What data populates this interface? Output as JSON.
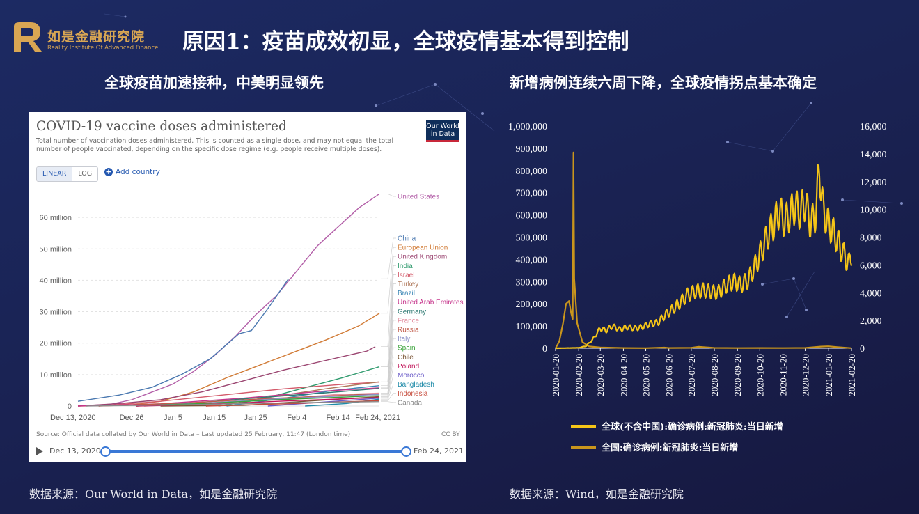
{
  "header": {
    "brand_cn": "如是金融研究院",
    "brand_en": "Reality Institute Of Advanced Finance",
    "title": "原因1：疫苗成效初显，全球疫情基本得到控制"
  },
  "left": {
    "subtitle": "全球疫苗加速接种，中美明显领先",
    "source": "数据来源：Our World in Data，如是金融研究院",
    "panel": {
      "title": "COVID-19 vaccine doses administered",
      "description": "Total number of vaccination doses administered. This is counted as a single dose, and may not equal the total number of people vaccinated, depending on the specific dose regime (e.g. people receive multiple doses).",
      "logo_text": [
        "Our World",
        "in Data"
      ],
      "scale_linear": "LINEAR",
      "scale_log": "LOG",
      "add_country": "Add country",
      "source_note": "Source: Official data collated by Our World in Data – Last updated 25 February, 11:47 (London time)",
      "license": "CC BY",
      "timeline_start": "Dec 13, 2020",
      "timeline_end": "Feb 24, 2021"
    }
  },
  "right": {
    "subtitle": "新增病例连续六周下降，全球疫情拐点基本确定",
    "source": "数据来源：Wind，如是金融研究院",
    "legend": [
      {
        "label": "全球(不含中国):确诊病例:新冠肺炎:当日新增",
        "color": "#f5c518"
      },
      {
        "label": "全国:确诊病例:新冠肺炎:当日新增",
        "color": "#c9951c"
      }
    ]
  },
  "chart_data": [
    {
      "type": "line",
      "title": "COVID-19 vaccine doses administered",
      "x_ticks": [
        "Dec 13, 2020",
        "Dec 26",
        "Jan 5",
        "Jan 15",
        "Jan 25",
        "Feb 4",
        "Feb 14",
        "Feb 24, 2021"
      ],
      "y_ticks": [
        "0",
        "10 million",
        "20 million",
        "30 million",
        "40 million",
        "50 million",
        "60 million"
      ],
      "ylim": [
        0,
        68000000
      ],
      "xlim_days": [
        0,
        73
      ],
      "series": [
        {
          "name": "United States",
          "color": "#b35fa8",
          "x": [
            0,
            8,
            13,
            18,
            23,
            28,
            33,
            38,
            43,
            48,
            53,
            58,
            63,
            68,
            73
          ],
          "values": [
            0,
            600000,
            2000000,
            4500000,
            7000000,
            11000000,
            16000000,
            22000000,
            29000000,
            35000000,
            43000000,
            51000000,
            57000000,
            63000000,
            67500000
          ]
        },
        {
          "name": "China",
          "color": "#4a78b0",
          "x": [
            0,
            10,
            18,
            25,
            32,
            39,
            42,
            46,
            51
          ],
          "values": [
            1500000,
            3500000,
            6000000,
            10000000,
            15000000,
            23000000,
            24000000,
            31000000,
            40500000
          ]
        },
        {
          "name": "European Union",
          "color": "#d17b36",
          "x": [
            0,
            12,
            20,
            28,
            36,
            44,
            52,
            60,
            68,
            73
          ],
          "values": [
            0,
            200000,
            1500000,
            4500000,
            9000000,
            13000000,
            17000000,
            21000000,
            25500000,
            29500000
          ]
        },
        {
          "name": "United Kingdom",
          "color": "#9a4470",
          "x": [
            0,
            10,
            20,
            30,
            40,
            50,
            60,
            70,
            72
          ],
          "values": [
            0,
            800000,
            2000000,
            4500000,
            8000000,
            11500000,
            14500000,
            17500000,
            18900000
          ]
        },
        {
          "name": "India",
          "color": "#2e9a6d",
          "x": [
            34,
            44,
            54,
            64,
            73
          ],
          "values": [
            0,
            2000000,
            5500000,
            9000000,
            12500000
          ]
        },
        {
          "name": "Israel",
          "color": "#d35a6a",
          "x": [
            5,
            20,
            35,
            50,
            65,
            73
          ],
          "values": [
            0,
            1500000,
            3500000,
            5500000,
            7000000,
            7600000
          ]
        },
        {
          "name": "Turkey",
          "color": "#b07a5c",
          "x": [
            31,
            45,
            60,
            73
          ],
          "values": [
            0,
            2500000,
            5500000,
            7700000
          ]
        },
        {
          "name": "Brazil",
          "color": "#3a86b5",
          "x": [
            36,
            50,
            62,
            73
          ],
          "values": [
            0,
            2500000,
            5000000,
            6500000
          ]
        },
        {
          "name": "United Arab Emirates",
          "color": "#c6368c",
          "x": [
            0,
            20,
            40,
            60,
            73
          ],
          "values": [
            0,
            700000,
            2500000,
            4800000,
            5800000
          ]
        },
        {
          "name": "Germany",
          "color": "#2f7a73",
          "x": [
            14,
            30,
            45,
            60,
            73
          ],
          "values": [
            0,
            1200000,
            2800000,
            4200000,
            5600000
          ]
        },
        {
          "name": "France",
          "color": "#e38fa0",
          "x": [
            16,
            32,
            48,
            62,
            73
          ],
          "values": [
            0,
            700000,
            2200000,
            3600000,
            4100000
          ]
        },
        {
          "name": "Russia",
          "color": "#c15b4a",
          "x": [
            5,
            25,
            45,
            73
          ],
          "values": [
            0,
            900000,
            2300000,
            3900000
          ]
        },
        {
          "name": "Italy",
          "color": "#8a8fc8",
          "x": [
            14,
            30,
            50,
            73
          ],
          "values": [
            0,
            900000,
            2400000,
            3700000
          ]
        },
        {
          "name": "Spain",
          "color": "#3aa33a",
          "x": [
            14,
            30,
            50,
            73
          ],
          "values": [
            0,
            800000,
            2100000,
            3300000
          ]
        },
        {
          "name": "Chile",
          "color": "#7a5535",
          "x": [
            20,
            40,
            55,
            73
          ],
          "values": [
            0,
            200000,
            1500000,
            3000000
          ]
        },
        {
          "name": "Poland",
          "color": "#c2185b",
          "x": [
            14,
            30,
            50,
            73
          ],
          "values": [
            0,
            500000,
            1600000,
            2700000
          ]
        },
        {
          "name": "Morocco",
          "color": "#6a5ac8",
          "x": [
            46,
            60,
            73
          ],
          "values": [
            0,
            1300000,
            2500000
          ]
        },
        {
          "name": "Bangladesh",
          "color": "#1e8aa8",
          "x": [
            55,
            65,
            73
          ],
          "values": [
            0,
            800000,
            2200000
          ]
        },
        {
          "name": "Indonesia",
          "color": "#c64a3a",
          "x": [
            31,
            50,
            73
          ],
          "values": [
            0,
            700000,
            1700000
          ]
        },
        {
          "name": "Canada",
          "color": "#8a8a8a",
          "x": [
            2,
            25,
            50,
            73
          ],
          "values": [
            0,
            400000,
            1000000,
            1400000
          ]
        }
      ]
    },
    {
      "type": "line",
      "x_ticks": [
        "2020-01-20",
        "2020-02-20",
        "2020-03-20",
        "2020-04-20",
        "2020-05-20",
        "2020-06-20",
        "2020-07-20",
        "2020-08-20",
        "2020-09-20",
        "2020-10-20",
        "2020-11-20",
        "2020-12-20",
        "2021-01-20",
        "2021-02-20"
      ],
      "y_left_ticks": [
        "0",
        "100,000",
        "200,000",
        "300,000",
        "400,000",
        "500,000",
        "600,000",
        "700,000",
        "800,000",
        "900,000",
        "1,000,000"
      ],
      "y_right_ticks": [
        "0",
        "2,000",
        "4,000",
        "6,000",
        "8,000",
        "10,000",
        "12,000",
        "14,000",
        "16,000"
      ],
      "ylim_left": [
        0,
        1000000
      ],
      "ylim_right": [
        0,
        16000
      ],
      "series": [
        {
          "name": "全球(不含中国):确诊病例:新冠肺炎:当日新增",
          "axis": "left",
          "color": "#f5c518",
          "x": [
            "2020-01-20",
            "2020-02-20",
            "2020-03-01",
            "2020-03-10",
            "2020-03-20",
            "2020-03-28",
            "2020-04-05",
            "2020-04-15",
            "2020-04-25",
            "2020-05-05",
            "2020-05-15",
            "2020-05-25",
            "2020-06-05",
            "2020-06-15",
            "2020-06-25",
            "2020-07-05",
            "2020-07-15",
            "2020-07-25",
            "2020-08-05",
            "2020-08-15",
            "2020-08-25",
            "2020-09-05",
            "2020-09-15",
            "2020-09-25",
            "2020-10-05",
            "2020-10-15",
            "2020-10-25",
            "2020-11-01",
            "2020-11-08",
            "2020-11-15",
            "2020-11-22",
            "2020-11-29",
            "2020-12-06",
            "2020-12-13",
            "2020-12-20",
            "2020-12-27",
            "2021-01-03",
            "2021-01-08",
            "2021-01-13",
            "2021-01-20",
            "2021-01-27",
            "2021-02-03",
            "2021-02-10",
            "2021-02-17",
            "2021-02-21"
          ],
          "values": [
            0,
            2000,
            10000,
            40000,
            90000,
            80000,
            100000,
            85000,
            95000,
            90000,
            95000,
            110000,
            115000,
            150000,
            175000,
            205000,
            240000,
            255000,
            260000,
            255000,
            250000,
            285000,
            300000,
            285000,
            310000,
            380000,
            460000,
            520000,
            560000,
            620000,
            570000,
            600000,
            640000,
            610000,
            660000,
            560000,
            600000,
            820000,
            620000,
            560000,
            520000,
            470000,
            420000,
            380000,
            440000
          ]
        },
        {
          "name": "全国:确诊病例:新冠肺炎:当日新增",
          "axis": "right",
          "color": "#c9951c",
          "x": [
            "2020-01-20",
            "2020-01-25",
            "2020-01-30",
            "2020-02-03",
            "2020-02-07",
            "2020-02-10",
            "2020-02-12",
            "2020-02-13",
            "2020-02-14",
            "2020-02-18",
            "2020-02-25",
            "2020-03-05",
            "2020-03-20",
            "2020-04-20",
            "2020-05-20",
            "2020-06-14",
            "2020-06-20",
            "2020-07-20",
            "2020-07-30",
            "2020-08-20",
            "2020-09-20",
            "2020-10-20",
            "2020-11-20",
            "2020-12-20",
            "2021-01-10",
            "2021-01-20",
            "2021-02-01",
            "2021-02-20"
          ],
          "values": [
            0,
            500,
            1800,
            3200,
            3400,
            2500,
            2100,
            14100,
            5000,
            1800,
            450,
            130,
            60,
            20,
            8,
            50,
            20,
            30,
            110,
            25,
            15,
            20,
            15,
            25,
            120,
            140,
            80,
            10
          ]
        }
      ]
    }
  ]
}
